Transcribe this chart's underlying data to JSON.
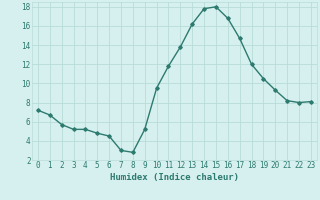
{
  "x": [
    0,
    1,
    2,
    3,
    4,
    5,
    6,
    7,
    8,
    9,
    10,
    11,
    12,
    13,
    14,
    15,
    16,
    17,
    18,
    19,
    20,
    21,
    22,
    23
  ],
  "y": [
    7.2,
    6.7,
    5.7,
    5.2,
    5.2,
    4.8,
    4.5,
    3.0,
    2.8,
    5.2,
    9.5,
    11.8,
    13.8,
    16.2,
    17.8,
    18.0,
    16.8,
    14.7,
    12.0,
    10.5,
    9.3,
    8.2,
    8.0,
    8.1
  ],
  "xlabel": "Humidex (Indice chaleur)",
  "line_color": "#2d7a6e",
  "bg_color": "#d6f0ef",
  "grid_color": "#b8dcd8",
  "tick_label_color": "#2d7a6e",
  "ylim": [
    2,
    18.5
  ],
  "yticks": [
    2,
    4,
    6,
    8,
    10,
    12,
    14,
    16,
    18
  ],
  "xticks": [
    0,
    1,
    2,
    3,
    4,
    5,
    6,
    7,
    8,
    9,
    10,
    11,
    12,
    13,
    14,
    15,
    16,
    17,
    18,
    19,
    20,
    21,
    22,
    23
  ],
  "xtick_labels": [
    "0",
    "1",
    "2",
    "3",
    "4",
    "5",
    "6",
    "7",
    "8",
    "9",
    "10",
    "11",
    "12",
    "13",
    "14",
    "15",
    "16",
    "17",
    "18",
    "19",
    "20",
    "21",
    "22",
    "23"
  ],
  "marker": "D",
  "marker_size": 1.8,
  "line_width": 1.0,
  "xlabel_fontsize": 6.5,
  "tick_fontsize": 5.5
}
